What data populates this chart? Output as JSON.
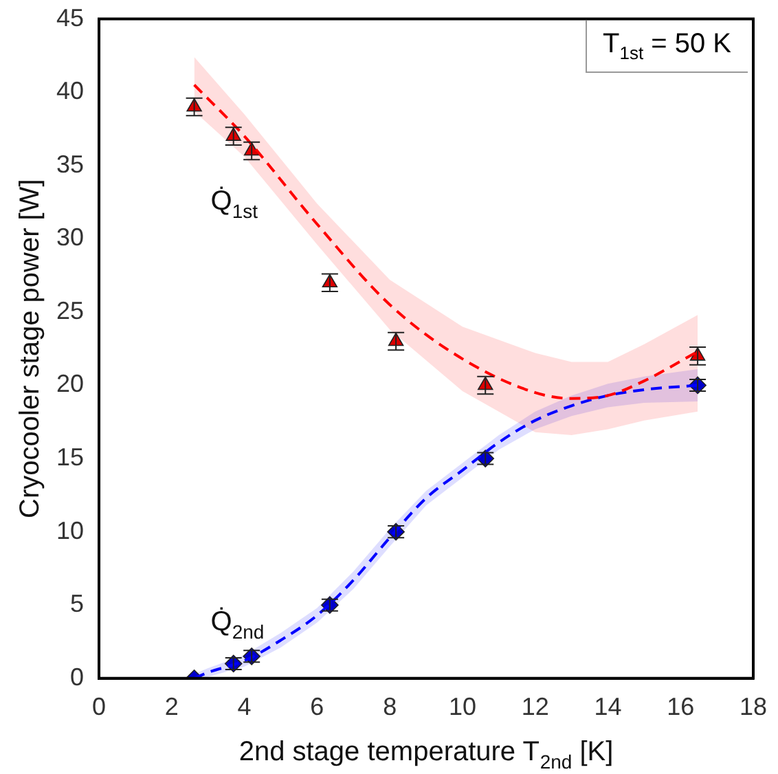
{
  "chart_data": {
    "type": "scatter",
    "xlabel": "2nd stage temperature T$_{2nd}$ [K]",
    "ylabel": "Cryocooler stage power [W]",
    "xlim": [
      0,
      18
    ],
    "xticks": [
      0,
      2,
      4,
      6,
      8,
      10,
      12,
      14,
      16,
      18
    ],
    "ylim": [
      0,
      45
    ],
    "yticks": [
      0,
      5,
      10,
      15,
      20,
      25,
      30,
      35,
      40,
      45
    ],
    "grid": false,
    "legend": false,
    "annotations": [
      "T$_{1st}$ = 50 K"
    ],
    "series": [
      {
        "type": "line",
        "color": "#ff0000",
        "marker": "none",
        "line_style": "dashed",
        "x": [
          2.62,
          4,
          6,
          8,
          10,
          12,
          13,
          14,
          15,
          16.47
        ],
        "values": [
          40.5,
          37,
          31,
          25.5,
          21.8,
          19.5,
          19.1,
          19.3,
          20.3,
          22.3
        ],
        "lower": [
          38.7,
          35.6,
          29.6,
          23.8,
          19.6,
          16.8,
          16.6,
          17.0,
          17.6,
          18.2
        ],
        "upper": [
          42.4,
          38.5,
          32.4,
          27.2,
          24.0,
          22.2,
          21.6,
          21.6,
          22.8,
          24.8
        ]
      },
      {
        "type": "line",
        "color": "#0000ff",
        "marker": "none",
        "line_style": "dashed",
        "x": [
          2.62,
          3,
          4,
          5,
          6,
          7,
          8,
          9,
          10,
          11,
          12,
          13,
          14,
          15,
          16.47
        ],
        "values": [
          0,
          0.4,
          1.2,
          2.6,
          4.3,
          6.7,
          9.6,
          12.3,
          14.2,
          16.1,
          17.6,
          18.6,
          19.3,
          19.7,
          20
        ],
        "lower": [
          0,
          0.1,
          0.8,
          2.1,
          3.8,
          6.1,
          9.0,
          11.8,
          13.7,
          15.6,
          17.0,
          17.9,
          18.5,
          18.8,
          18.9
        ],
        "upper": [
          0.3,
          0.7,
          1.6,
          3.1,
          4.8,
          7.3,
          10.2,
          12.8,
          14.7,
          16.6,
          18.2,
          19.3,
          20.1,
          20.6,
          21.1
        ]
      },
      {
        "name": "Q̇$_{1st}$",
        "color": "#dd0000",
        "marker": "triangle",
        "x": [
          2.62,
          3.7,
          4.2,
          6.35,
          8.17,
          10.63,
          16.47
        ],
        "values": [
          39,
          37,
          36,
          27,
          23,
          20,
          22
        ],
        "errors": [
          0.6,
          0.6,
          0.6,
          0.6,
          0.6,
          0.6,
          0.6
        ]
      },
      {
        "name": "Q̇$_{2nd}$",
        "color": "#0000cc",
        "marker": "diamond",
        "x": [
          2.62,
          3.7,
          4.2,
          6.35,
          8.17,
          10.63,
          16.47
        ],
        "values": [
          0,
          1,
          1.5,
          5,
          10,
          15,
          20
        ],
        "errors": [
          null,
          0.4,
          0.4,
          0.4,
          0.4,
          0.4,
          0.4
        ]
      }
    ]
  }
}
